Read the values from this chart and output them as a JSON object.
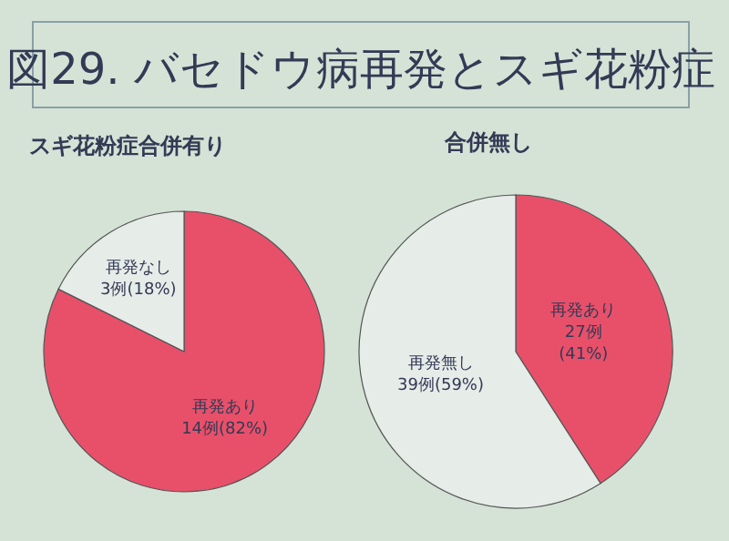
{
  "chart_data": [
    {
      "type": "pie",
      "title": "図29. バセドウ病再発とスギ花粉症",
      "subtitle": "スギ花粉症合併有り",
      "categories": [
        "再発あり",
        "再発なし"
      ],
      "values": [
        14,
        3
      ],
      "colors": [
        "#e8506a",
        "#e6ece8"
      ],
      "value_labels": [
        "14例(82%)",
        "3例(18%)"
      ]
    },
    {
      "type": "pie",
      "title": "合併無し",
      "categories": [
        "再発あり",
        "再発無し"
      ],
      "values": [
        27,
        39
      ],
      "colors": [
        "#e8506a",
        "#e6ece8"
      ],
      "value_labels": [
        "27例\n(41%)",
        "39例(59%)"
      ]
    }
  ]
}
